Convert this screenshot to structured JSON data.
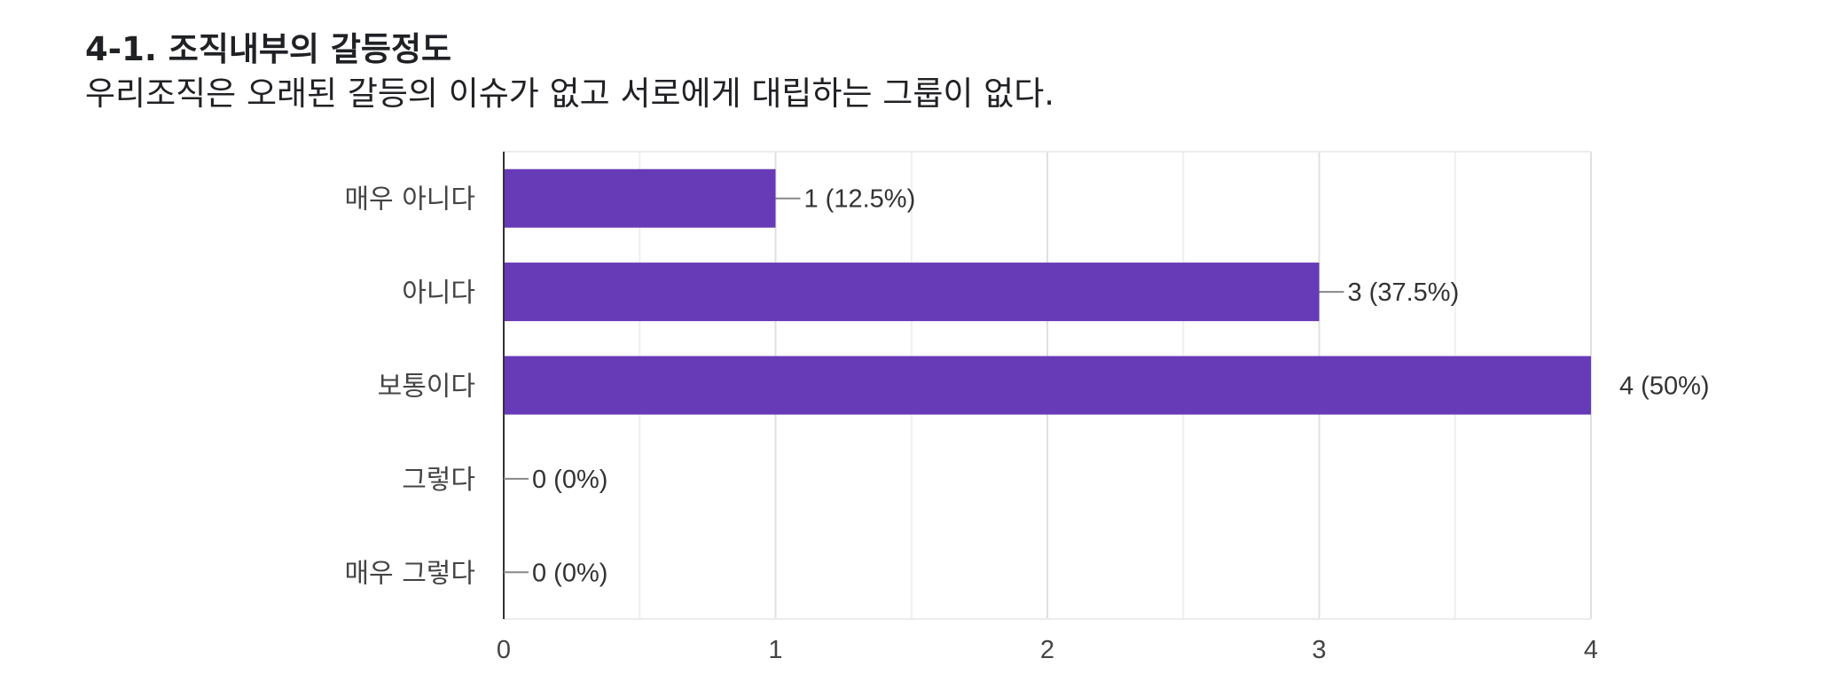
{
  "header": {
    "title": "4-1. 조직내부의 갈등정도",
    "subtitle": "우리조직은 오래된 갈등의 이슈가 없고 서로에게 대립하는 그룹이 없다."
  },
  "chart_data": {
    "type": "bar",
    "orientation": "horizontal",
    "categories": [
      "매우 아니다",
      "아니다",
      "보통이다",
      "그렇다",
      "매우 그렇다"
    ],
    "values": [
      1,
      3,
      4,
      0,
      0
    ],
    "data_labels": [
      "1 (12.5%)",
      "3 (37.5%)",
      "4 (50%)",
      "0 (0%)",
      "0 (0%)"
    ],
    "xlim": [
      0,
      4
    ],
    "xticks": [
      0,
      1,
      2,
      3,
      4
    ],
    "grid": true,
    "bar_color": "#673ab7"
  }
}
